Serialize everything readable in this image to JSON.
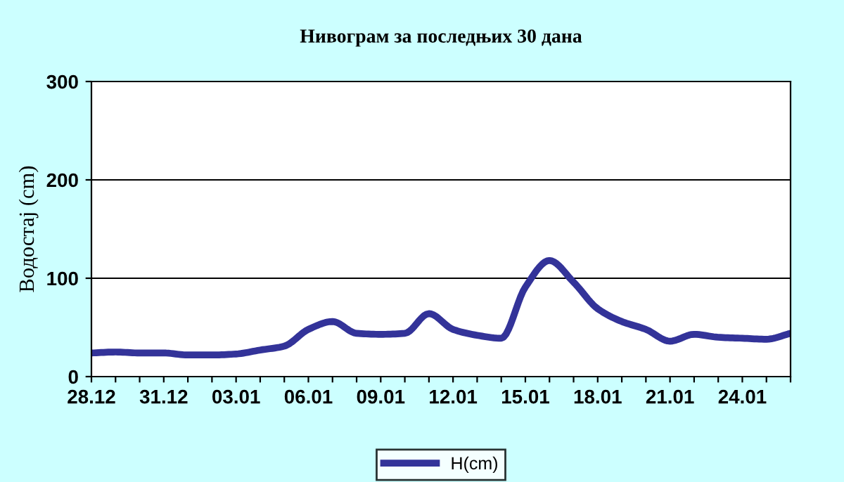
{
  "chart_data": {
    "type": "line",
    "title": "Нивограм за последњих 30 дана",
    "ylabel": "Водостај (cm)",
    "categories": [
      "28.12",
      null,
      null,
      "31.12",
      null,
      null,
      "03.01",
      null,
      null,
      "06.01",
      null,
      null,
      "09.01",
      null,
      null,
      "12.01",
      null,
      null,
      "15.01",
      null,
      null,
      "18.01",
      null,
      null,
      "21.01",
      null,
      null,
      "24.01",
      null,
      null
    ],
    "series": [
      {
        "name": "H(cm)",
        "color": "#333399",
        "values": [
          24,
          25,
          24,
          24,
          22,
          22,
          23,
          27,
          31,
          48,
          56,
          44,
          43,
          44,
          64,
          48,
          42,
          39,
          91,
          118,
          96,
          69,
          56,
          48,
          36,
          43,
          40,
          39,
          38,
          44
        ]
      }
    ],
    "ylim": [
      0,
      300
    ],
    "yticks": [
      0,
      100,
      200,
      300
    ],
    "grid": "y",
    "legend": "bottom",
    "marker": "none",
    "line_style": "solid"
  }
}
